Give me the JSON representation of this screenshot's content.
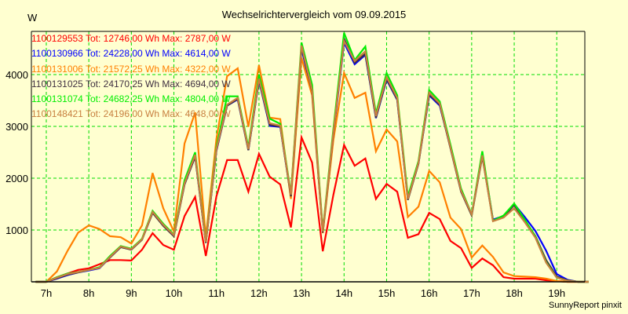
{
  "chart_data": {
    "type": "line",
    "title": "Wechselrichtervergleich vom 09.09.2015",
    "ylabel": "W",
    "xlabel": "",
    "footer": "SunnyReport pinxit",
    "xlim": [
      6.65,
      19.66
    ],
    "ylim": [
      0,
      4833
    ],
    "grid": true,
    "legend_position": "top-left",
    "x_ticks": [
      7,
      8,
      9,
      10,
      11,
      12,
      13,
      14,
      15,
      16,
      17,
      18,
      19
    ],
    "x_tick_labels": [
      "7h",
      "8h",
      "9h",
      "10h",
      "11h",
      "12h",
      "13h",
      "14h",
      "15h",
      "16h",
      "17h",
      "18h",
      "19h"
    ],
    "y_ticks": [
      1000,
      2000,
      3000,
      4000
    ],
    "y_tick_labels": [
      "1000",
      "2000",
      "3000",
      "4000"
    ],
    "x": [
      6.75,
      7,
      7.25,
      7.5,
      7.75,
      8,
      8.25,
      8.5,
      8.75,
      9,
      9.25,
      9.5,
      9.75,
      10,
      10.25,
      10.5,
      10.75,
      11,
      11.25,
      11.5,
      11.75,
      12,
      12.25,
      12.5,
      12.75,
      13,
      13.25,
      13.5,
      13.75,
      14,
      14.25,
      14.5,
      14.75,
      15,
      15.25,
      15.5,
      15.75,
      16,
      16.25,
      16.5,
      16.75,
      17,
      17.25,
      17.5,
      17.75,
      18,
      18.25,
      18.5,
      18.75,
      19,
      19.25,
      19.5,
      19.75
    ],
    "series": [
      {
        "name": "1100129553",
        "legend": "1100129553 Tot: 12746,00 Wh Max: 2787,00 W",
        "color": "#ff0000",
        "values": [
          0,
          0,
          90,
          160,
          230,
          260,
          340,
          420,
          420,
          410,
          620,
          940,
          710,
          620,
          1270,
          1640,
          500,
          1650,
          2350,
          2350,
          1740,
          2470,
          2030,
          1880,
          1050,
          2787,
          2300,
          590,
          1680,
          2640,
          2240,
          2380,
          1600,
          1890,
          1740,
          850,
          920,
          1330,
          1210,
          790,
          650,
          270,
          450,
          320,
          90,
          60,
          60,
          60,
          30,
          15,
          0,
          0,
          0
        ]
      },
      {
        "name": "1100130966",
        "legend": "1100130966 Tot: 24228,00 Wh Max: 4614,00 W",
        "color": "#0000ff",
        "values": [
          0,
          0,
          60,
          130,
          180,
          220,
          260,
          470,
          670,
          630,
          820,
          1360,
          1110,
          900,
          1880,
          2420,
          760,
          2530,
          3400,
          3520,
          2540,
          3880,
          3010,
          2990,
          1660,
          4500,
          3640,
          960,
          2850,
          4614,
          4200,
          4380,
          3160,
          3900,
          3510,
          1600,
          2290,
          3600,
          3400,
          2600,
          1760,
          1300,
          2460,
          1200,
          1270,
          1500,
          1250,
          980,
          600,
          150,
          40,
          0,
          0
        ]
      },
      {
        "name": "1100131006",
        "legend": "1100131006 Tot: 21572,25 Wh Max: 4322,00 W",
        "color": "#ff8000",
        "values": [
          0,
          0,
          200,
          600,
          950,
          1090,
          1020,
          880,
          860,
          740,
          1090,
          2100,
          1420,
          970,
          2670,
          3270,
          860,
          2760,
          3970,
          4120,
          2990,
          4180,
          3170,
          3140,
          1600,
          4322,
          3600,
          940,
          2740,
          4030,
          3550,
          3650,
          2520,
          2940,
          2710,
          1250,
          1450,
          2140,
          1920,
          1240,
          1020,
          470,
          700,
          480,
          180,
          110,
          100,
          90,
          60,
          15,
          0,
          0,
          0
        ]
      },
      {
        "name": "1100131025",
        "legend": "1100131025 Tot: 24170,25 Wh Max: 4694,00 W",
        "color": "#403040",
        "values": [
          0,
          0,
          70,
          140,
          180,
          230,
          270,
          470,
          670,
          620,
          810,
          1330,
          1080,
          880,
          1880,
          2420,
          750,
          2540,
          3400,
          3530,
          2540,
          3900,
          3030,
          3000,
          1650,
          4530,
          3680,
          950,
          2870,
          4694,
          4230,
          4400,
          3170,
          3920,
          3520,
          1580,
          2280,
          3620,
          3420,
          2580,
          1740,
          1280,
          2420,
          1180,
          1260,
          1480,
          1180,
          880,
          420,
          100,
          30,
          0,
          0
        ]
      },
      {
        "name": "1100131074",
        "legend": "1100131074 Tot: 24682,25 Wh Max: 4804,00 W",
        "color": "#00ee00",
        "values": [
          0,
          0,
          90,
          160,
          190,
          230,
          280,
          500,
          690,
          640,
          830,
          1370,
          1120,
          910,
          1960,
          2500,
          780,
          2600,
          3580,
          3580,
          2600,
          4000,
          3150,
          3050,
          1700,
          4620,
          3800,
          990,
          2950,
          4804,
          4280,
          4540,
          3250,
          4030,
          3600,
          1650,
          2330,
          3700,
          3480,
          2650,
          1800,
          1300,
          2520,
          1180,
          1280,
          1510,
          1200,
          870,
          380,
          80,
          20,
          0,
          0
        ]
      },
      {
        "name": "1100148421",
        "legend": "1100148421 Tot: 24196,00 Wh Max: 4648,00 W",
        "color": "#c88040",
        "values": [
          0,
          0,
          80,
          150,
          190,
          230,
          270,
          480,
          680,
          630,
          820,
          1350,
          1100,
          900,
          1900,
          2450,
          770,
          2560,
          3420,
          3550,
          2560,
          3920,
          3060,
          3015,
          1680,
          4560,
          3700,
          970,
          2890,
          4648,
          4260,
          4450,
          3200,
          3950,
          3550,
          1600,
          2300,
          3650,
          3440,
          2600,
          1760,
          1300,
          2440,
          1170,
          1240,
          1420,
          1150,
          850,
          370,
          80,
          20,
          0,
          0
        ]
      }
    ]
  },
  "colors": {
    "background": "#ffffd0",
    "grid": "#00dd00",
    "axis": "#000000"
  }
}
